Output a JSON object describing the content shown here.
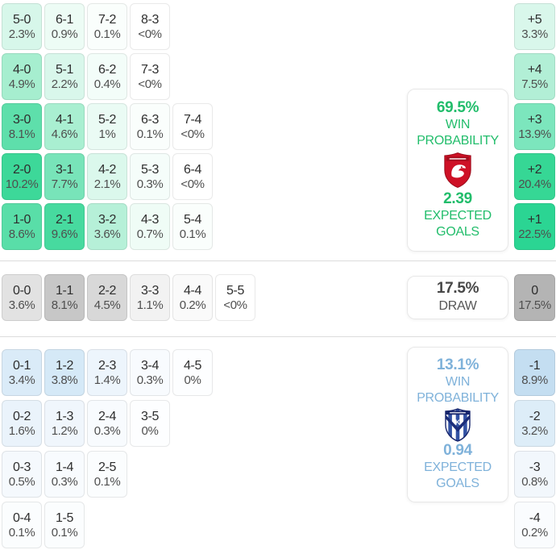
{
  "chart_data": {
    "type": "heatmap",
    "description": "Correct score probability matrix with win probabilities, expected goals and goal-difference distribution",
    "home": {
      "win_probability": "69.5%",
      "win_label_line1": "WIN",
      "win_label_line2": "PROBABILITY",
      "expected_goals": "2.39",
      "expected_label_line1": "EXPECTED",
      "expected_label_line2": "GOALS",
      "accent_color": "#22bd6b",
      "logo": "red-shield-eagle-crest",
      "score_rows": [
        [
          {
            "score": "5-0",
            "pct": "2.3%",
            "bg": "#d7f7ea"
          },
          {
            "score": "6-1",
            "pct": "0.9%",
            "bg": "#edfcf5"
          },
          {
            "score": "7-2",
            "pct": "0.1%",
            "bg": "#fafefc"
          },
          {
            "score": "8-3",
            "pct": "<0%",
            "bg": "#ffffff"
          }
        ],
        [
          {
            "score": "4-0",
            "pct": "4.9%",
            "bg": "#a6eecf"
          },
          {
            "score": "5-1",
            "pct": "2.2%",
            "bg": "#d9f7eb"
          },
          {
            "score": "6-2",
            "pct": "0.4%",
            "bg": "#f3fdf9"
          },
          {
            "score": "7-3",
            "pct": "<0%",
            "bg": "#ffffff"
          }
        ],
        [
          {
            "score": "3-0",
            "pct": "8.1%",
            "bg": "#5edfab"
          },
          {
            "score": "4-1",
            "pct": "4.6%",
            "bg": "#a9efd1"
          },
          {
            "score": "5-2",
            "pct": "1%",
            "bg": "#eafbf4"
          },
          {
            "score": "6-3",
            "pct": "0.1%",
            "bg": "#fafefc"
          },
          {
            "score": "7-4",
            "pct": "<0%",
            "bg": "#ffffff"
          }
        ],
        [
          {
            "score": "2-0",
            "pct": "10.2%",
            "bg": "#3dd899"
          },
          {
            "score": "3-1",
            "pct": "7.7%",
            "bg": "#78e4b9"
          },
          {
            "score": "4-2",
            "pct": "2.1%",
            "bg": "#dbf8ec"
          },
          {
            "score": "5-3",
            "pct": "0.3%",
            "bg": "#f5fdfa"
          },
          {
            "score": "6-4",
            "pct": "<0%",
            "bg": "#ffffff"
          }
        ],
        [
          {
            "score": "1-0",
            "pct": "8.6%",
            "bg": "#59dea8"
          },
          {
            "score": "2-1",
            "pct": "9.6%",
            "bg": "#47da9f"
          },
          {
            "score": "3-2",
            "pct": "3.6%",
            "bg": "#b6f0d8"
          },
          {
            "score": "4-3",
            "pct": "0.7%",
            "bg": "#effcf6"
          },
          {
            "score": "5-4",
            "pct": "0.1%",
            "bg": "#fafefc"
          }
        ]
      ],
      "goal_diff": [
        {
          "label": "+5",
          "pct": "3.3%",
          "bg": "#d9f7eb"
        },
        {
          "label": "+4",
          "pct": "7.5%",
          "bg": "#b2efd6"
        },
        {
          "label": "+3",
          "pct": "13.9%",
          "bg": "#7ce6bd"
        },
        {
          "label": "+2",
          "pct": "20.4%",
          "bg": "#36d795"
        },
        {
          "label": "+1",
          "pct": "22.5%",
          "bg": "#2bd593"
        }
      ]
    },
    "draw": {
      "probability": "17.5%",
      "label": "DRAW",
      "cells": [
        {
          "score": "0-0",
          "pct": "3.6%",
          "bg": "#e2e2e2"
        },
        {
          "score": "1-1",
          "pct": "8.1%",
          "bg": "#c7c7c7"
        },
        {
          "score": "2-2",
          "pct": "4.5%",
          "bg": "#d8d8d8"
        },
        {
          "score": "3-3",
          "pct": "1.1%",
          "bg": "#f2f2f2"
        },
        {
          "score": "4-4",
          "pct": "0.2%",
          "bg": "#fafafa"
        },
        {
          "score": "5-5",
          "pct": "<0%",
          "bg": "#ffffff"
        }
      ],
      "goal_diff": {
        "label": "0",
        "pct": "17.5%",
        "bg": "#b4b4b4"
      }
    },
    "away": {
      "win_probability": "13.1%",
      "win_label_line1": "WIN",
      "win_label_line2": "PROBABILITY",
      "expected_goals": "0.94",
      "expected_label_line1": "EXPECTED",
      "expected_label_line2": "GOALS",
      "accent_color": "#7fb2da",
      "logo": "blue-striped-shield-crest",
      "score_rows": [
        [
          {
            "score": "0-1",
            "pct": "3.4%",
            "bg": "#daebf8"
          },
          {
            "score": "1-2",
            "pct": "3.8%",
            "bg": "#d5e9f7"
          },
          {
            "score": "2-3",
            "pct": "1.4%",
            "bg": "#edf5fc"
          },
          {
            "score": "3-4",
            "pct": "0.3%",
            "bg": "#f8fbfe"
          },
          {
            "score": "4-5",
            "pct": "0%",
            "bg": "#fdfeff"
          }
        ],
        [
          {
            "score": "0-2",
            "pct": "1.6%",
            "bg": "#eaf3fb"
          },
          {
            "score": "1-3",
            "pct": "1.2%",
            "bg": "#f0f6fc"
          },
          {
            "score": "2-4",
            "pct": "0.3%",
            "bg": "#f8fbfe"
          },
          {
            "score": "3-5",
            "pct": "0%",
            "bg": "#fdfeff"
          }
        ],
        [
          {
            "score": "0-3",
            "pct": "0.5%",
            "bg": "#f5f9fd"
          },
          {
            "score": "1-4",
            "pct": "0.3%",
            "bg": "#f8fbfe"
          },
          {
            "score": "2-5",
            "pct": "0.1%",
            "bg": "#fbfdfe"
          }
        ],
        [
          {
            "score": "0-4",
            "pct": "0.1%",
            "bg": "#fbfdfe"
          },
          {
            "score": "1-5",
            "pct": "0.1%",
            "bg": "#fbfdfe"
          }
        ]
      ],
      "goal_diff": [
        {
          "label": "-1",
          "pct": "8.9%",
          "bg": "#c4def1"
        },
        {
          "label": "-2",
          "pct": "3.2%",
          "bg": "#ddedf8"
        },
        {
          "label": "-3",
          "pct": "0.8%",
          "bg": "#f2f7fc"
        },
        {
          "label": "-4",
          "pct": "0.2%",
          "bg": "#fafcfe"
        }
      ]
    }
  }
}
